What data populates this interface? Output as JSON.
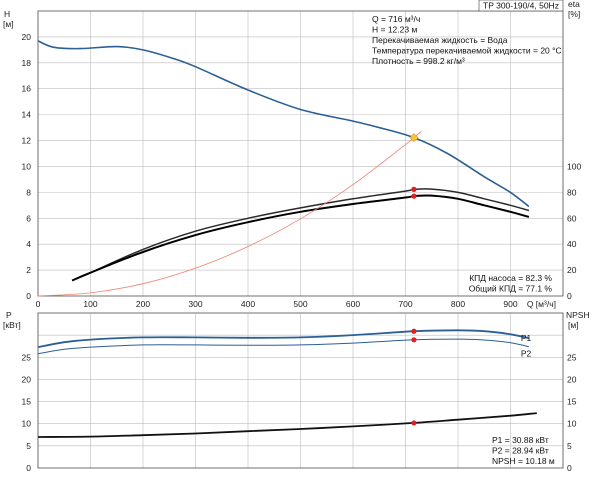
{
  "chart_data": [
    {
      "type": "line",
      "panel": "upper",
      "title": "TP 300-190/4, 50Hz",
      "xlabel": "Q [м³/ч]",
      "xlim": [
        0,
        1000
      ],
      "x_ticks": [
        0,
        100,
        200,
        300,
        400,
        500,
        600,
        700,
        800,
        900
      ],
      "ylabel_left": {
        "name": "H",
        "unit": "[м]"
      },
      "ylim_left": [
        0,
        22
      ],
      "y_ticks_left": [
        0,
        2,
        4,
        6,
        8,
        10,
        12,
        14,
        16,
        18,
        20
      ],
      "ylabel_right": {
        "name": "eta",
        "unit": "[%]"
      },
      "ylim_right": [
        0,
        220
      ],
      "y_ticks_right": [
        0,
        20,
        40,
        60,
        80,
        100
      ],
      "grid": true,
      "info_lines": [
        "Q = 716 м³/ч",
        "H = 12.23 м",
        "Перекачиваемая жидкость = Вода",
        "Температура перекачиваемой жидкости = 20 °C",
        "Плотность = 998.2 кг/м³"
      ],
      "efficiency_lines": [
        "КПД насоса = 82.3 %",
        "Общий КПД = 77.1 %"
      ],
      "series": [
        {
          "key": "H",
          "axis": "left",
          "color": "#2b5f95",
          "x": [
            0,
            30,
            80,
            150,
            200,
            260,
            300,
            400,
            500,
            600,
            650,
            716,
            780,
            850,
            900,
            935
          ],
          "values": [
            19.7,
            19.2,
            19.1,
            19.25,
            19.0,
            18.3,
            17.7,
            15.9,
            14.4,
            13.5,
            13.0,
            12.23,
            11.0,
            9.2,
            8.0,
            6.9
          ]
        },
        {
          "key": "eta_pump",
          "axis": "right",
          "color": "#2a2a2a",
          "x": [
            65,
            100,
            200,
            300,
            400,
            500,
            600,
            700,
            716,
            750,
            800,
            850,
            900,
            935
          ],
          "values": [
            12,
            18,
            36,
            50,
            60,
            68,
            75,
            81,
            82.3,
            82.5,
            80,
            75,
            70,
            66
          ]
        },
        {
          "key": "eta_total",
          "axis": "right",
          "color": "#000000",
          "x": [
            65,
            100,
            200,
            300,
            400,
            500,
            600,
            700,
            716,
            750,
            800,
            850,
            900,
            935
          ],
          "values": [
            12,
            18,
            34,
            47,
            57,
            65,
            71,
            76,
            77.1,
            77.5,
            75,
            70,
            65,
            61
          ]
        },
        {
          "key": "system_curve",
          "axis": "left",
          "color": "#f08070",
          "x": [
            0,
            100,
            200,
            300,
            400,
            500,
            600,
            700,
            716,
            730
          ],
          "values": [
            0,
            0.24,
            0.95,
            2.15,
            3.82,
            5.96,
            8.59,
            11.69,
            12.23,
            12.7
          ]
        }
      ],
      "operating_points": [
        {
          "axis": "left",
          "x": 716,
          "value": 12.23,
          "color": "#f5c542"
        },
        {
          "axis": "right",
          "x": 716,
          "value": 82.3,
          "color": "#e02020"
        },
        {
          "axis": "right",
          "x": 716,
          "value": 77.1,
          "color": "#e02020"
        }
      ]
    },
    {
      "type": "line",
      "panel": "lower",
      "xlim": [
        0,
        1000
      ],
      "ylabel_left": {
        "name": "P",
        "unit": "[кВт]"
      },
      "ylim_left": [
        0,
        35
      ],
      "y_ticks_left": [
        0,
        5,
        10,
        15,
        20,
        25
      ],
      "ylabel_right": {
        "name": "NPSH",
        "unit": "[м]"
      },
      "ylim_right": [
        0,
        35
      ],
      "y_ticks_right": [
        0,
        5,
        10,
        15,
        20,
        25
      ],
      "grid": true,
      "readout_lines": [
        "P1 = 30.88 кВт",
        "P2 = 28.94 кВт",
        "NPSH = 10.18 м"
      ],
      "series": [
        {
          "key": "P1",
          "name": "P1",
          "axis": "left",
          "color": "#2b5f95",
          "x": [
            0,
            50,
            100,
            200,
            300,
            400,
            500,
            600,
            716,
            800,
            850,
            900,
            935
          ],
          "values": [
            27.3,
            28.4,
            29.0,
            29.5,
            29.5,
            29.4,
            29.5,
            30.0,
            30.88,
            31.1,
            30.9,
            30.2,
            29.3
          ]
        },
        {
          "key": "P2",
          "name": "P2",
          "axis": "left",
          "color": "#2b5f95",
          "x": [
            0,
            50,
            100,
            200,
            300,
            400,
            500,
            600,
            716,
            800,
            850,
            900,
            935
          ],
          "values": [
            25.8,
            26.8,
            27.3,
            27.8,
            27.8,
            27.7,
            27.8,
            28.2,
            28.94,
            29.1,
            28.9,
            28.3,
            27.4
          ]
        },
        {
          "key": "NPSH",
          "axis": "right",
          "color": "#111111",
          "x": [
            0,
            100,
            200,
            300,
            400,
            500,
            600,
            716,
            800,
            900,
            950
          ],
          "values": [
            7.0,
            7.1,
            7.4,
            7.8,
            8.3,
            8.8,
            9.4,
            10.18,
            10.9,
            11.8,
            12.4
          ]
        }
      ],
      "operating_points": [
        {
          "axis": "left",
          "x": 716,
          "value": 30.88,
          "color": "#e02020"
        },
        {
          "axis": "left",
          "x": 716,
          "value": 28.94,
          "color": "#e02020"
        },
        {
          "axis": "right",
          "x": 716,
          "value": 10.18,
          "color": "#e02020"
        }
      ]
    }
  ]
}
